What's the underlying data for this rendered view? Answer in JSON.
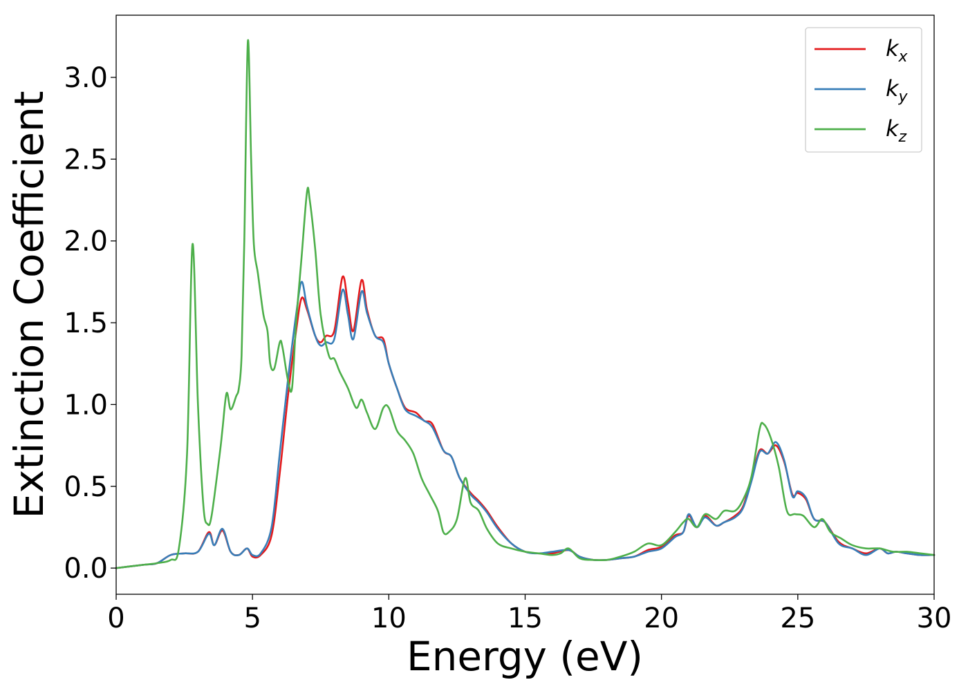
{
  "chart_data": {
    "type": "line",
    "title": "",
    "xlabel": "Energy (eV)",
    "ylabel": "Extinction Coefficient",
    "xlim": [
      0,
      30
    ],
    "ylim": [
      -0.16,
      3.38
    ],
    "xticks": [
      0,
      5,
      10,
      15,
      20,
      25,
      30
    ],
    "yticks": [
      0.0,
      0.5,
      1.0,
      1.5,
      2.0,
      2.5,
      3.0
    ],
    "xtick_labels": [
      "0",
      "5",
      "10",
      "15",
      "20",
      "25",
      "30"
    ],
    "ytick_labels": [
      "0.0",
      "0.5",
      "1.0",
      "1.5",
      "2.0",
      "2.5",
      "3.0"
    ],
    "grid": false,
    "legend_position": "top-right",
    "series": [
      {
        "name": "k_x",
        "label_base": "k",
        "label_sub": "x",
        "color": "#e41a1c",
        "x": [
          0,
          1,
          1.5,
          2,
          2.5,
          3,
          3.4,
          3.6,
          3.9,
          4.2,
          4.5,
          4.8,
          5,
          5.3,
          5.7,
          6,
          6.3,
          6.6,
          6.8,
          7,
          7.3,
          7.5,
          7.7,
          8,
          8.3,
          8.5,
          8.7,
          9,
          9.2,
          9.5,
          9.8,
          10,
          10.3,
          10.6,
          11,
          11.3,
          11.6,
          12,
          12.3,
          12.6,
          13,
          13.3,
          13.6,
          14,
          14.5,
          15,
          15.5,
          16,
          16.6,
          17,
          17.5,
          18,
          18.5,
          19,
          19.5,
          20,
          20.5,
          20.8,
          21,
          21.3,
          21.6,
          22,
          22.3,
          22.7,
          23,
          23.3,
          23.6,
          23.9,
          24.2,
          24.5,
          24.8,
          25,
          25.3,
          25.6,
          26,
          26.5,
          27,
          27.5,
          28,
          28.3,
          28.6,
          29,
          29.5,
          30
        ],
        "y": [
          0.0,
          0.02,
          0.03,
          0.08,
          0.09,
          0.1,
          0.22,
          0.14,
          0.23,
          0.1,
          0.08,
          0.12,
          0.07,
          0.08,
          0.2,
          0.58,
          1.05,
          1.45,
          1.65,
          1.58,
          1.42,
          1.38,
          1.42,
          1.45,
          1.78,
          1.62,
          1.45,
          1.76,
          1.58,
          1.42,
          1.4,
          1.25,
          1.1,
          0.98,
          0.95,
          0.9,
          0.88,
          0.72,
          0.68,
          0.55,
          0.46,
          0.41,
          0.35,
          0.25,
          0.15,
          0.1,
          0.09,
          0.09,
          0.11,
          0.07,
          0.05,
          0.05,
          0.06,
          0.07,
          0.11,
          0.13,
          0.2,
          0.22,
          0.32,
          0.25,
          0.32,
          0.26,
          0.28,
          0.32,
          0.38,
          0.55,
          0.72,
          0.7,
          0.75,
          0.65,
          0.45,
          0.46,
          0.42,
          0.3,
          0.28,
          0.16,
          0.12,
          0.09,
          0.12,
          0.09,
          0.1,
          0.09,
          0.08,
          0.08
        ]
      },
      {
        "name": "k_y",
        "label_base": "k",
        "label_sub": "y",
        "color": "#377eb8",
        "x": [
          0,
          1,
          1.5,
          2,
          2.5,
          3,
          3.4,
          3.6,
          3.9,
          4.2,
          4.5,
          4.8,
          5,
          5.3,
          5.7,
          6,
          6.3,
          6.6,
          6.8,
          7,
          7.3,
          7.5,
          7.7,
          8,
          8.3,
          8.5,
          8.7,
          9,
          9.2,
          9.5,
          9.8,
          10,
          10.3,
          10.6,
          11,
          11.3,
          11.6,
          12,
          12.3,
          12.6,
          13,
          13.3,
          13.6,
          14,
          14.5,
          15,
          15.5,
          16,
          16.6,
          17,
          17.5,
          18,
          18.5,
          19,
          19.5,
          20,
          20.5,
          20.8,
          21,
          21.3,
          21.6,
          22,
          22.3,
          22.7,
          23,
          23.3,
          23.6,
          23.9,
          24.2,
          24.5,
          24.8,
          25,
          25.3,
          25.6,
          26,
          26.5,
          27,
          27.5,
          28,
          28.3,
          28.6,
          29,
          29.5,
          30
        ],
        "y": [
          0.0,
          0.02,
          0.03,
          0.08,
          0.09,
          0.1,
          0.21,
          0.14,
          0.24,
          0.1,
          0.08,
          0.12,
          0.08,
          0.09,
          0.25,
          0.7,
          1.15,
          1.55,
          1.75,
          1.6,
          1.42,
          1.36,
          1.38,
          1.4,
          1.7,
          1.55,
          1.4,
          1.69,
          1.56,
          1.42,
          1.38,
          1.25,
          1.1,
          0.97,
          0.93,
          0.9,
          0.86,
          0.72,
          0.68,
          0.55,
          0.45,
          0.4,
          0.34,
          0.24,
          0.15,
          0.1,
          0.09,
          0.1,
          0.11,
          0.07,
          0.05,
          0.05,
          0.06,
          0.07,
          0.1,
          0.12,
          0.19,
          0.22,
          0.33,
          0.25,
          0.31,
          0.26,
          0.28,
          0.31,
          0.37,
          0.53,
          0.71,
          0.7,
          0.77,
          0.66,
          0.44,
          0.47,
          0.43,
          0.3,
          0.28,
          0.15,
          0.12,
          0.08,
          0.12,
          0.09,
          0.1,
          0.09,
          0.08,
          0.08
        ]
      },
      {
        "name": "k_z",
        "label_base": "k",
        "label_sub": "z",
        "color": "#4daf4a",
        "x": [
          0,
          1,
          1.5,
          2,
          2.3,
          2.6,
          2.8,
          3,
          3.2,
          3.35,
          3.5,
          3.8,
          3.9,
          4.05,
          4.2,
          4.4,
          4.5,
          4.6,
          4.7,
          4.83,
          4.95,
          5.05,
          5.2,
          5.4,
          5.55,
          5.65,
          5.8,
          6,
          6.1,
          6.3,
          6.45,
          6.6,
          6.8,
          7,
          7.1,
          7.3,
          7.5,
          7.8,
          8,
          8.2,
          8.5,
          8.8,
          9,
          9.2,
          9.5,
          9.8,
          10,
          10.3,
          10.6,
          10.9,
          11.2,
          11.5,
          11.8,
          12,
          12.2,
          12.5,
          12.8,
          13,
          13.3,
          13.6,
          14,
          14.5,
          15,
          15.5,
          16,
          16.3,
          16.6,
          17,
          17.5,
          18,
          18.5,
          19,
          19.5,
          20,
          20.5,
          20.8,
          21,
          21.3,
          21.6,
          22,
          22.3,
          22.7,
          23,
          23.3,
          23.6,
          23.75,
          24,
          24.3,
          24.6,
          24.9,
          25.2,
          25.6,
          25.9,
          26.2,
          26.6,
          27,
          27.5,
          28,
          28.5,
          29,
          29.5,
          30
        ],
        "y": [
          0.0,
          0.02,
          0.03,
          0.05,
          0.12,
          0.7,
          1.98,
          1.0,
          0.38,
          0.27,
          0.32,
          0.7,
          0.85,
          1.07,
          0.97,
          1.05,
          1.1,
          1.3,
          2.0,
          3.22,
          2.5,
          1.98,
          1.8,
          1.55,
          1.45,
          1.25,
          1.22,
          1.38,
          1.35,
          1.15,
          1.1,
          1.5,
          1.9,
          2.3,
          2.25,
          1.95,
          1.55,
          1.3,
          1.28,
          1.2,
          1.1,
          0.98,
          1.03,
          0.95,
          0.85,
          0.98,
          0.98,
          0.84,
          0.78,
          0.7,
          0.55,
          0.45,
          0.35,
          0.22,
          0.22,
          0.3,
          0.55,
          0.4,
          0.35,
          0.24,
          0.15,
          0.12,
          0.1,
          0.09,
          0.08,
          0.09,
          0.12,
          0.06,
          0.05,
          0.05,
          0.07,
          0.1,
          0.15,
          0.14,
          0.22,
          0.28,
          0.3,
          0.25,
          0.33,
          0.3,
          0.35,
          0.35,
          0.42,
          0.56,
          0.85,
          0.88,
          0.8,
          0.62,
          0.35,
          0.33,
          0.32,
          0.25,
          0.3,
          0.22,
          0.18,
          0.14,
          0.12,
          0.12,
          0.1,
          0.1,
          0.09,
          0.08
        ]
      }
    ]
  }
}
